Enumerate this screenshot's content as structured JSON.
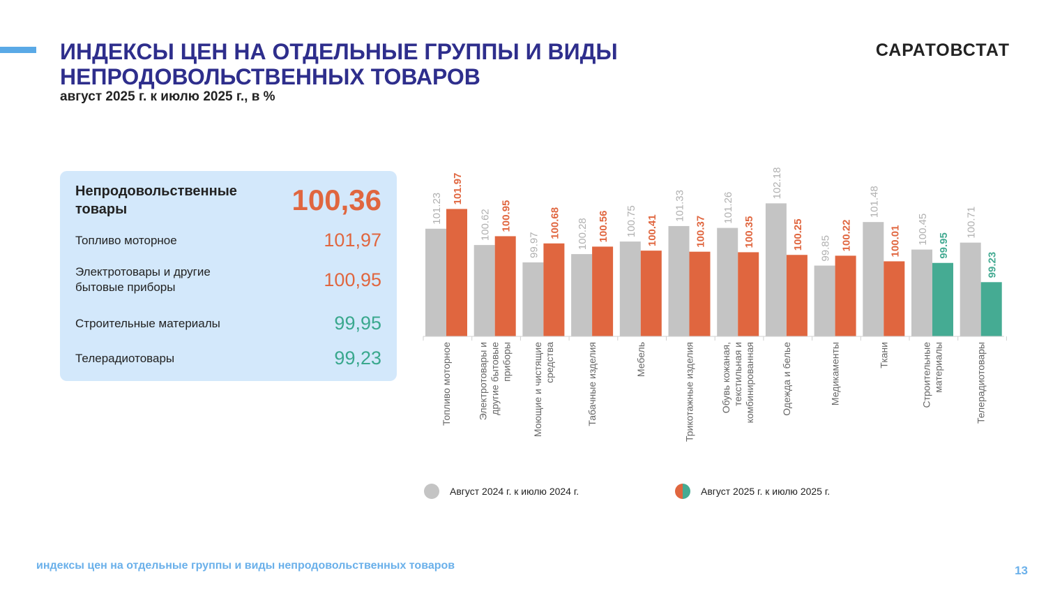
{
  "header": {
    "title": "ИНДЕКСЫ ЦЕН НА ОТДЕЛЬНЫЕ ГРУППЫ И ВИДЫ НЕПРОДОВОЛЬСТВЕННЫХ ТОВАРОВ",
    "subtitle": "август 2025 г. к июлю 2025 г., в %",
    "brand": "САРАТОВСТАТ"
  },
  "summary": {
    "main_label": "Непродовольственные товары",
    "main_value": "100,36",
    "items": [
      {
        "label": "Топливо моторное",
        "value": "101,97",
        "color": "#e0663f"
      },
      {
        "label": "Электротовары и другие бытовые приборы",
        "value": "100,95",
        "color": "#e0663f"
      },
      {
        "label": "Строительные материалы",
        "value": "99,95",
        "color": "#3aa88e"
      },
      {
        "label": "Телерадиотовары",
        "value": "99,23",
        "color": "#3aa88e"
      }
    ]
  },
  "chart_data": {
    "type": "bar",
    "categories": [
      "Топливо моторное",
      "Электротовары и другие бытовые приборы",
      "Моющие и чистящие средства",
      "Табачные изделия",
      "Мебель",
      "Трикотажные изделия",
      "Обувь кожаная, текстильная и комбинированная",
      "Одежда и белье",
      "Медикаменты",
      "Ткани",
      "Строительные материалы",
      "Телерадиотовары"
    ],
    "series": [
      {
        "name": "Август 2024 г. к июлю 2024 г.",
        "values": [
          101.23,
          100.62,
          99.97,
          100.28,
          100.75,
          101.33,
          101.26,
          102.18,
          99.85,
          101.48,
          100.45,
          100.71
        ]
      },
      {
        "name": "Август 2025 г. к июлю 2025 г.",
        "values": [
          101.97,
          100.95,
          100.68,
          100.56,
          100.41,
          100.37,
          100.35,
          100.25,
          100.22,
          100.01,
          99.95,
          99.23
        ]
      }
    ],
    "label_format": "decimal-point",
    "ylim": [
      97.2,
      103
    ],
    "colors": {
      "series_2024": "#c4c4c4",
      "series_2025_up": "#e0663f",
      "series_2025_down": "#45ab93"
    }
  },
  "footer": {
    "text": "индексы цен на отдельные группы и виды непродовольственных товаров",
    "page": "13"
  }
}
